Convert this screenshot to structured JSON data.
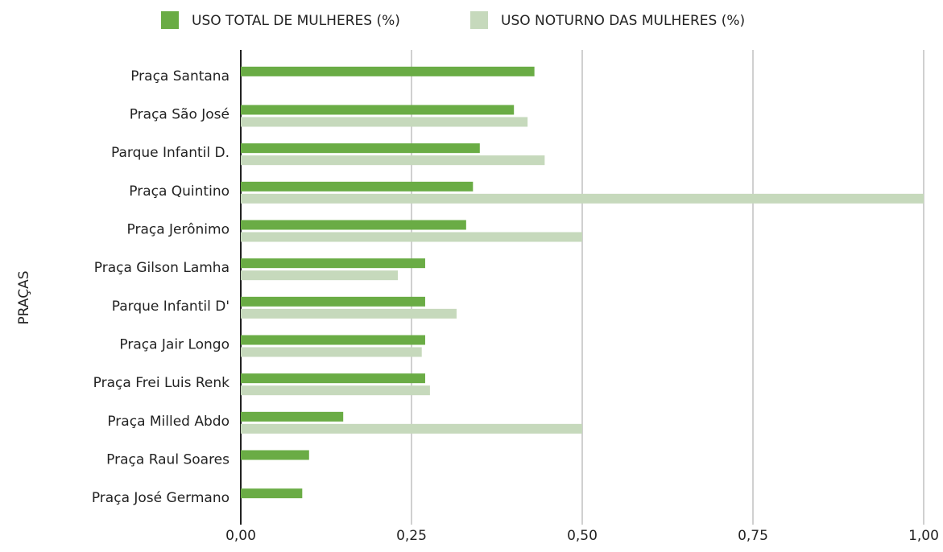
{
  "chart_data": {
    "type": "bar",
    "orientation": "horizontal",
    "y_axis_label": "PRAÇAS",
    "categories": [
      "Praça Santana",
      "Praça São José",
      "Parque Infantil D.",
      "Praça Quintino",
      "Praça Jerônimo",
      "Praça Gilson Lamha",
      "Parque Infantil D'",
      "Praça Jair Longo",
      "Praça Frei Luis Renk",
      "Praça Milled Abdo",
      "Praça Raul Soares",
      "Praça José Germano"
    ],
    "series": [
      {
        "name": "USO TOTAL DE MULHERES (%)",
        "color": "#6aac45",
        "values": [
          0.43,
          0.4,
          0.35,
          0.34,
          0.33,
          0.27,
          0.27,
          0.27,
          0.27,
          0.15,
          0.1,
          0.09
        ]
      },
      {
        "name": "USO NOTURNO DAS MULHERES (%)",
        "color": "#c6d9bc",
        "values": [
          null,
          0.42,
          0.445,
          1.0,
          0.5,
          0.23,
          0.316,
          0.265,
          0.277,
          0.5,
          null,
          null
        ]
      }
    ],
    "xlim": [
      0,
      1
    ],
    "xticks": [
      {
        "value": 0,
        "label": "0,00"
      },
      {
        "value": 0.25,
        "label": "0,25"
      },
      {
        "value": 0.5,
        "label": "0,50"
      },
      {
        "value": 0.75,
        "label": "0,75"
      },
      {
        "value": 1,
        "label": "1,00"
      }
    ],
    "grid": true,
    "legend": "top"
  }
}
